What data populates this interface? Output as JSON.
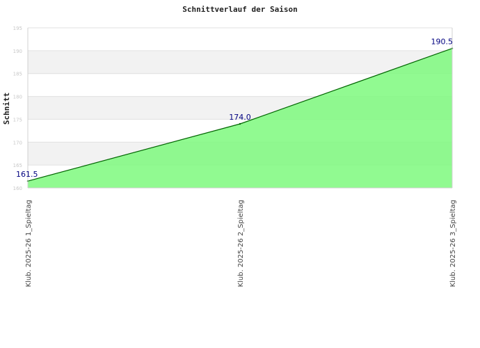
{
  "chart_data": {
    "type": "area",
    "title": "Schnittverlauf der Saison",
    "ylabel": "Schnitt",
    "xlabel": "",
    "categories": [
      "Klub. 2025-26  1_Spieltag",
      "Klub. 2025-26  2_Spieltag",
      "Klub. 2025-26  3_Spieltag"
    ],
    "values": [
      161.5,
      174.0,
      190.5
    ],
    "data_labels": [
      "161.5",
      "174.0",
      "190.5"
    ],
    "ylim": [
      160,
      195
    ],
    "yticks": [
      160,
      165,
      170,
      175,
      180,
      185,
      190,
      195
    ],
    "grid": "horizontal",
    "colors": {
      "fill": "#7ef97e",
      "line": "#006400",
      "band": "#f2f2f2",
      "label": "#000080"
    }
  }
}
